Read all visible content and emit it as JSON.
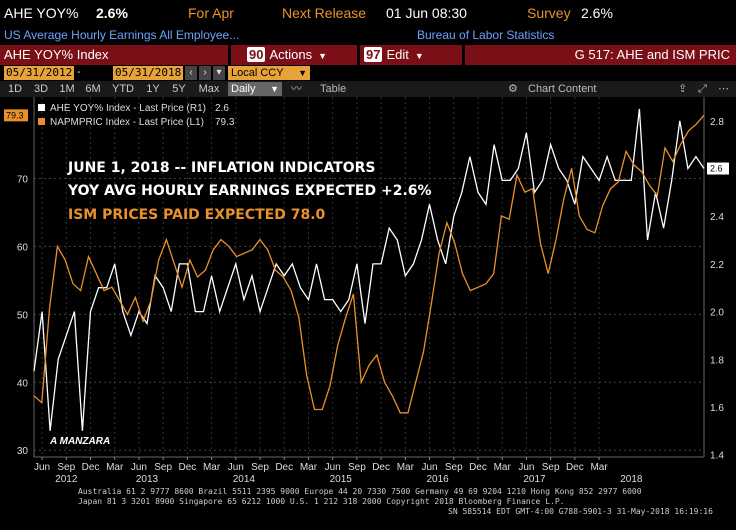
{
  "header": {
    "ticker": "AHE YOY%",
    "last": "2.6%",
    "for_label": "For Apr",
    "next_release_label": "Next Release",
    "next_release_value": "01 Jun 08:30",
    "survey_label": "Survey",
    "survey_value": "2.6%",
    "description": "US Average Hourly Earnings All Employee...",
    "source": "Bureau of Labor Statistics"
  },
  "menubar": {
    "security": "AHE YOY% Index",
    "actions_num": "90",
    "actions_label": "Actions",
    "edit_num": "97",
    "edit_label": "Edit",
    "page_title": "G 517: AHE and ISM PRIC"
  },
  "dates": {
    "start": "05/31/2012",
    "end": "05/31/2018",
    "currency": "Local CCY"
  },
  "toolbar": {
    "ranges": [
      "1D",
      "3D",
      "1M",
      "6M",
      "YTD",
      "1Y",
      "5Y",
      "Max"
    ],
    "frequency": "Daily",
    "table_label": "Table",
    "chart_content_label": "Chart Content"
  },
  "chart_data": {
    "type": "line",
    "legend": [
      {
        "name": "AHE YOY% Index - Last Price (R1)",
        "value": "2.6",
        "color": "#ffffff"
      },
      {
        "name": "NAPMPRIC Index - Last Price (L1)",
        "value": "79.3",
        "color": "#e8912b"
      }
    ],
    "annotations": [
      {
        "text": "JUNE 1, 2018 -- INFLATION INDICATORS",
        "color": "#ffffff"
      },
      {
        "text": "YOY AVG HOURLY EARNINGS EXPECTED +2.6%",
        "color": "#ffffff"
      },
      {
        "text": "ISM PRICES PAID EXPECTED 78.0",
        "color": "#e8912b"
      }
    ],
    "watermark": "A MANZARA",
    "left_axis": {
      "ticks": [
        30,
        40,
        50,
        60,
        70
      ],
      "range": [
        29,
        82
      ],
      "last_label": "79.3"
    },
    "right_axis": {
      "ticks": [
        1.4,
        1.6,
        1.8,
        2.0,
        2.2,
        2.4,
        2.6,
        2.8
      ],
      "range": [
        1.39,
        2.9
      ],
      "last_label": "2.6"
    },
    "x_month_labels": [
      "Jun",
      "Sep",
      "Dec",
      "Mar",
      "Jun",
      "Sep",
      "Dec",
      "Mar",
      "Jun",
      "Sep",
      "Dec",
      "Mar",
      "Jun",
      "Sep",
      "Dec",
      "Mar",
      "Jun",
      "Sep",
      "Dec",
      "Mar",
      "Jun",
      "Sep",
      "Dec",
      "Mar"
    ],
    "x_year_labels": [
      "2012",
      "2013",
      "2014",
      "2015",
      "2016",
      "2017",
      "2018"
    ],
    "x_start": "2012-05",
    "series": [
      {
        "name": "AHE YOY% Index - Last Price (R1)",
        "axis": "right",
        "color": "#ffffff",
        "values": [
          1.75,
          2.0,
          1.5,
          1.8,
          1.9,
          2.0,
          1.5,
          2.0,
          2.1,
          2.1,
          2.2,
          2.0,
          1.9,
          2.0,
          1.95,
          2.15,
          2.1,
          2.0,
          2.2,
          2.2,
          2.0,
          2.0,
          2.15,
          2.0,
          2.1,
          2.2,
          2.05,
          2.15,
          2.0,
          2.1,
          2.2,
          2.15,
          2.2,
          2.1,
          2.05,
          2.2,
          2.05,
          2.05,
          2.0,
          2.05,
          2.2,
          1.95,
          2.2,
          2.2,
          2.35,
          2.3,
          2.15,
          2.2,
          2.3,
          2.45,
          2.3,
          2.2,
          2.4,
          2.5,
          2.65,
          2.5,
          2.45,
          2.7,
          2.55,
          2.55,
          2.6,
          2.75,
          2.5,
          2.55,
          2.7,
          2.6,
          2.55,
          2.45,
          2.65,
          2.6,
          2.55,
          2.65,
          2.55,
          2.55,
          2.55,
          2.85,
          2.3,
          2.5,
          2.35,
          2.55,
          2.8,
          2.6,
          2.65,
          2.6
        ]
      },
      {
        "name": "NAPMPRIC Index - Last Price (L1)",
        "axis": "left",
        "color": "#e8912b",
        "values": [
          38.0,
          37.0,
          51.0,
          60.0,
          58.0,
          54.5,
          53.5,
          58.5,
          56.0,
          53.5,
          54.0,
          52.0,
          50.0,
          52.5,
          49.0,
          52.0,
          58.0,
          61.0,
          57.5,
          54.0,
          58.0,
          55.5,
          56.5,
          59.5,
          61.0,
          60.0,
          58.5,
          59.0,
          59.5,
          61.0,
          59.5,
          56.5,
          55.5,
          53.5,
          49.5,
          41.0,
          36.0,
          36.0,
          39.5,
          45.5,
          49.5,
          53.0,
          40.0,
          42.5,
          44.0,
          40.0,
          38.0,
          35.5,
          35.5,
          40.0,
          44.5,
          51.5,
          59.0,
          63.5,
          60.5,
          56.0,
          53.5,
          54.0,
          54.5,
          56.0,
          64.5,
          64.0,
          70.5,
          68.0,
          68.5,
          60.5,
          56.0,
          61.0,
          67.0,
          71.5,
          64.5,
          62.5,
          62.0,
          66.0,
          68.5,
          69.5,
          74.0,
          72.0,
          71.0,
          69.0,
          67.5,
          74.5,
          72.5,
          75.0,
          77.0,
          78.0,
          79.3
        ]
      }
    ]
  },
  "footer": {
    "line1": "Australia 61 2 9777 8600 Brazil 5511 2395 9000 Europe 44 20 7330 7500 Germany 49 69 9204 1210 Hong Kong 852 2977 6000",
    "line2": "Japan 81 3 3201 8900       Singapore 65 6212 1000       U.S. 1 212 318 2000               Copyright 2018 Bloomberg Finance L.P.",
    "line3": "SN 585514 EDT  GMT-4:00 G788-5901-3 31-May-2018 16:19:16"
  }
}
